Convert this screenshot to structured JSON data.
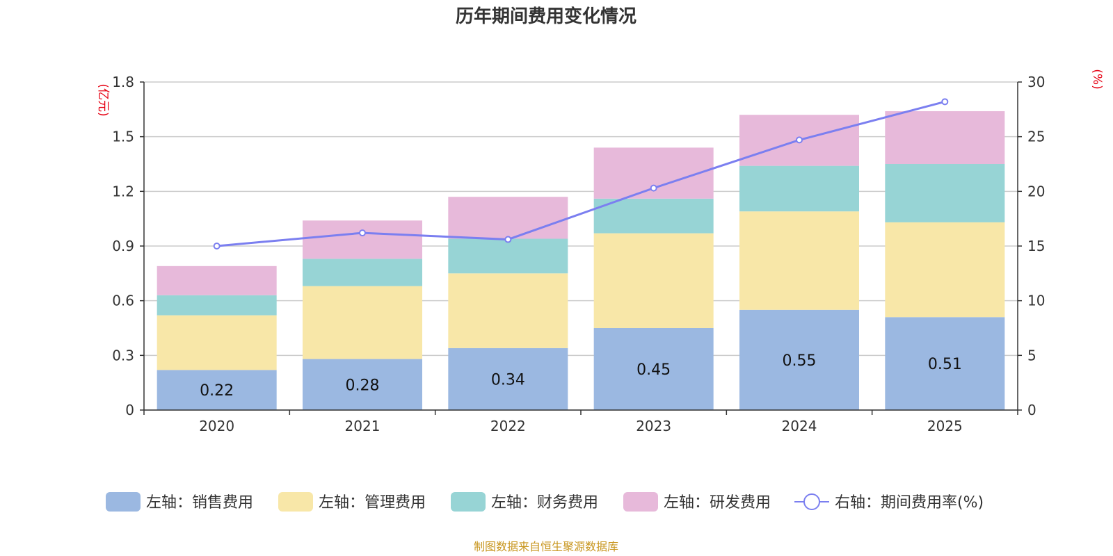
{
  "chart_data": {
    "type": "bar",
    "stacked": true,
    "title": "历年期间费用变化情况",
    "categories": [
      "2020",
      "2021",
      "2022",
      "2023",
      "2024",
      "2025"
    ],
    "left_axis": {
      "unit": "(亿元)",
      "ylim": [
        0,
        1.8
      ],
      "ticks": [
        0,
        0.3,
        0.6,
        0.9,
        1.2,
        1.5,
        1.8
      ],
      "tick_labels": [
        "0",
        "0.3",
        "0.6",
        "0.9",
        "1.2",
        "1.5",
        "1.8"
      ]
    },
    "right_axis": {
      "unit": "(%)",
      "ylim": [
        0,
        30
      ],
      "ticks": [
        0,
        5,
        10,
        15,
        20,
        25,
        30
      ],
      "tick_labels": [
        "0",
        "5",
        "10",
        "15",
        "20",
        "25",
        "30"
      ]
    },
    "series": [
      {
        "name": "左轴：销售费用",
        "type": "bar",
        "axis": "left",
        "color": "#9bb8e1",
        "values": [
          0.22,
          0.28,
          0.34,
          0.45,
          0.55,
          0.51
        ],
        "data_labels": [
          "0.22",
          "0.28",
          "0.34",
          "0.45",
          "0.55",
          "0.51"
        ]
      },
      {
        "name": "左轴：管理费用",
        "type": "bar",
        "axis": "left",
        "color": "#f8e7a8",
        "values": [
          0.3,
          0.4,
          0.41,
          0.52,
          0.54,
          0.52
        ]
      },
      {
        "name": "左轴：财务费用",
        "type": "bar",
        "axis": "left",
        "color": "#97d4d5",
        "values": [
          0.11,
          0.15,
          0.19,
          0.19,
          0.25,
          0.32
        ]
      },
      {
        "name": "左轴：研发费用",
        "type": "bar",
        "axis": "left",
        "color": "#e7b9da",
        "values": [
          0.16,
          0.21,
          0.23,
          0.28,
          0.28,
          0.29
        ]
      },
      {
        "name": "右轴：期间费用率(%)",
        "type": "line",
        "axis": "right",
        "color": "#7b7ff0",
        "values": [
          15.0,
          16.2,
          15.6,
          20.3,
          24.7,
          28.2
        ]
      }
    ],
    "legend_position": "bottom",
    "grid": true
  },
  "source_text": "制图数据来自恒生聚源数据库"
}
